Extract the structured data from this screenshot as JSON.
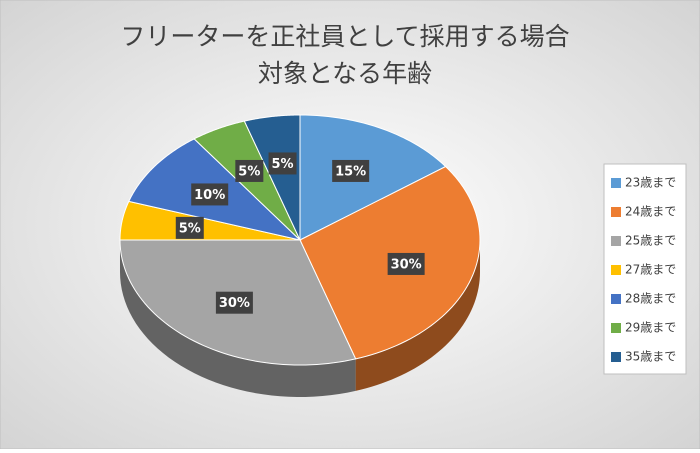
{
  "chart_data": {
    "type": "pie",
    "title": [
      "フリーターを正社員として採用する場合",
      "対象となる年齢"
    ],
    "categories": [
      "23歳まで",
      "24歳まで",
      "25歳まで",
      "27歳まで",
      "28歳まで",
      "29歳まで",
      "35歳まで"
    ],
    "values": [
      15,
      30,
      30,
      5,
      10,
      5,
      5
    ],
    "value_labels": [
      "15%",
      "30%",
      "30%",
      "5%",
      "10%",
      "5%",
      "5%"
    ],
    "colors": [
      "#5b9bd5",
      "#ed7d31",
      "#a5a5a5",
      "#ffc000",
      "#4472c4",
      "#70ad47",
      "#255e91"
    ],
    "legend": "right"
  }
}
